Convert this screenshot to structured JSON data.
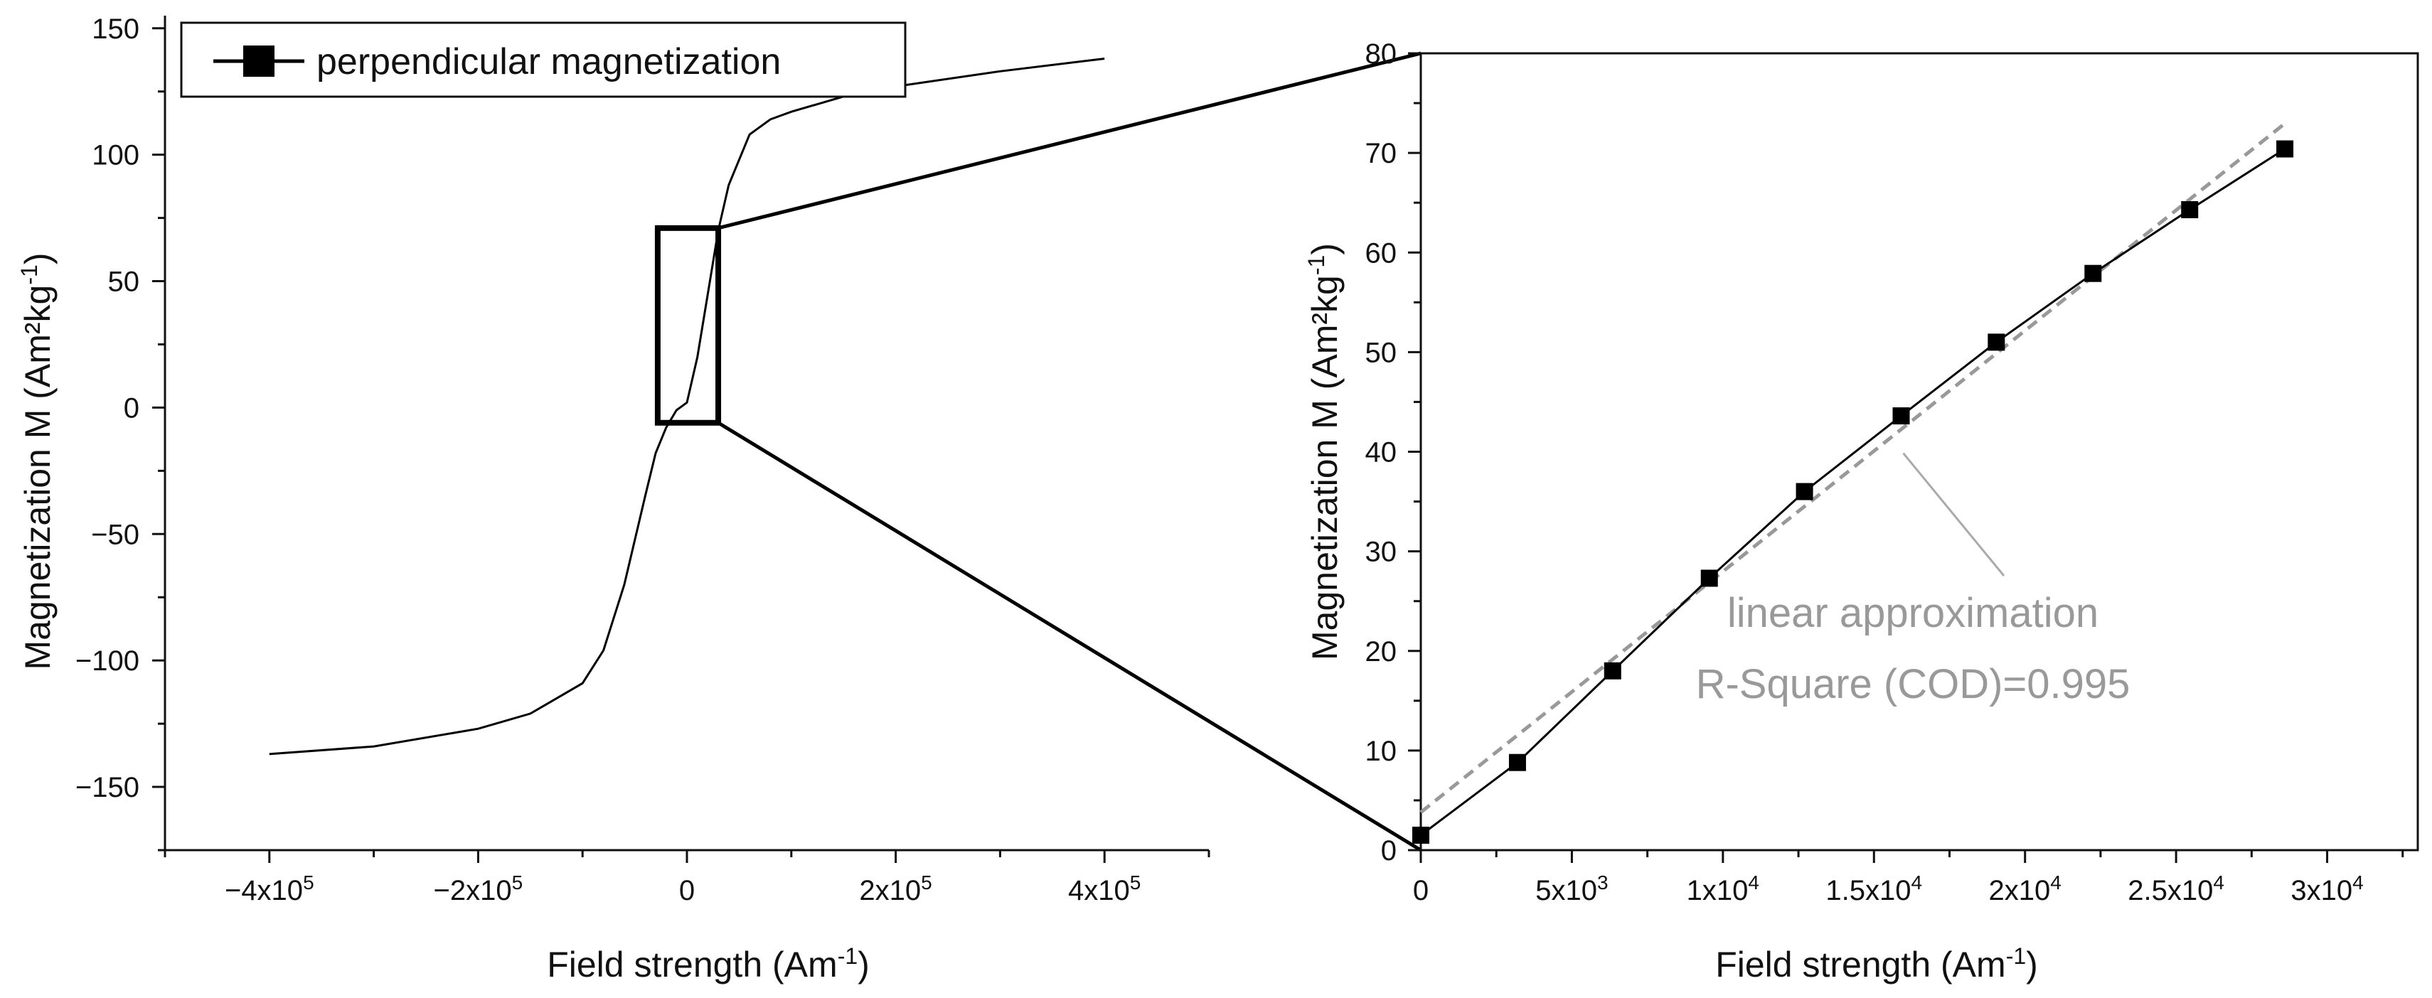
{
  "chart_data": [
    {
      "type": "line",
      "name": "full-hysteresis",
      "xlabel": "Field strength (Am",
      "xlabel_sup": "-1",
      "xlabel_end": ")",
      "ylabel": "Magnetization M (Am²kg",
      "ylabel_sup": "-1",
      "ylabel_end": ")",
      "xlim": [
        -500000,
        500000
      ],
      "ylim": [
        -175,
        155
      ],
      "xticks": [
        {
          "value": -400000,
          "base": "−4x10",
          "exp": "5"
        },
        {
          "value": -200000,
          "base": "−2x10",
          "exp": "5"
        },
        {
          "value": 0,
          "base": "0",
          "exp": ""
        },
        {
          "value": 200000,
          "base": "2x10",
          "exp": "5"
        },
        {
          "value": 400000,
          "base": "4x10",
          "exp": "5"
        }
      ],
      "yticks": [
        {
          "value": 150,
          "label": "150"
        },
        {
          "value": 100,
          "label": "100"
        },
        {
          "value": 50,
          "label": "50"
        },
        {
          "value": 0,
          "label": "0"
        },
        {
          "value": -50,
          "label": "−50"
        },
        {
          "value": -100,
          "label": "−100"
        },
        {
          "value": -150,
          "label": "−150"
        }
      ],
      "series": [
        {
          "name": "perpendicular magnetization",
          "x": [
            -400000,
            -300000,
            -200000,
            -150000,
            -100000,
            -80000,
            -60000,
            -40000,
            -30000,
            -20000,
            -10000,
            0,
            10000,
            20000,
            30000,
            40000,
            60000,
            80000,
            100000,
            150000,
            200000,
            300000,
            400000
          ],
          "y": [
            -137,
            -134,
            -127,
            -121,
            -109,
            -96,
            -70,
            -35,
            -18,
            -8,
            -1,
            2,
            20,
            45,
            70,
            88,
            108,
            114,
            117,
            123,
            127,
            133,
            138
          ]
        }
      ],
      "legend": {
        "label": "perpendicular magnetization",
        "position": "top-left"
      },
      "zoom_box": {
        "x": [
          -28000,
          30000
        ],
        "y": [
          -6,
          71
        ]
      }
    },
    {
      "type": "scatter",
      "name": "low-field-zoom",
      "xlabel": "Field strength (Am",
      "xlabel_sup": "-1",
      "xlabel_end": ")",
      "ylabel": "Magnetization M (Am²kg",
      "ylabel_sup": "-1",
      "ylabel_end": ")",
      "xlim": [
        0,
        33000
      ],
      "ylim": [
        0,
        80
      ],
      "xticks": [
        {
          "value": 0,
          "base": "0",
          "exp": ""
        },
        {
          "value": 5000,
          "base": "5x10",
          "exp": "3"
        },
        {
          "value": 10000,
          "base": "1x10",
          "exp": "4"
        },
        {
          "value": 15000,
          "base": "1.5x10",
          "exp": "4"
        },
        {
          "value": 20000,
          "base": "2x10",
          "exp": "4"
        },
        {
          "value": 25000,
          "base": "2.5x10",
          "exp": "4"
        },
        {
          "value": 30000,
          "base": "3x10",
          "exp": "4"
        }
      ],
      "yticks": [
        {
          "value": 0,
          "label": "0"
        },
        {
          "value": 10,
          "label": "10"
        },
        {
          "value": 20,
          "label": "20"
        },
        {
          "value": 30,
          "label": "30"
        },
        {
          "value": 40,
          "label": "40"
        },
        {
          "value": 50,
          "label": "50"
        },
        {
          "value": 60,
          "label": "60"
        },
        {
          "value": 70,
          "label": "70"
        },
        {
          "value": 80,
          "label": "80"
        }
      ],
      "series": [
        {
          "name": "perpendicular magnetization",
          "x": [
            0,
            3200,
            6350,
            9550,
            12700,
            15900,
            19050,
            22250,
            25450,
            28600
          ],
          "y": [
            1.5,
            8.8,
            18.0,
            27.3,
            36.0,
            43.6,
            51.0,
            57.9,
            64.3,
            70.4
          ]
        }
      ],
      "fit": {
        "name": "linear approximation",
        "intercept": 3.8,
        "slope": 0.002418,
        "x_range": [
          0,
          28600
        ],
        "label": "linear approximation",
        "r_square": "R-Square (COD)=0.995"
      }
    }
  ],
  "colors": {
    "axis": "#111111",
    "data": "#000000",
    "fit_line": "#999999",
    "annotation": "#999999"
  }
}
